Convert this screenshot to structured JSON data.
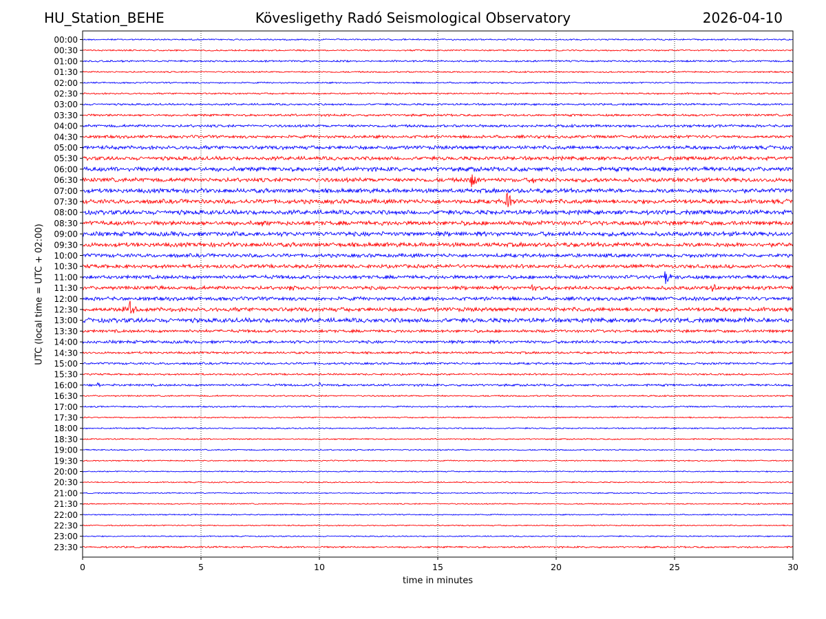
{
  "header": {
    "station": "HU_Station_BEHE",
    "observatory": "Kövesligethy Radó Seismological Observatory",
    "date": "2026-04-10"
  },
  "chart_data": {
    "type": "line",
    "title": "Kövesligethy Radó Seismological Observatory",
    "xlabel": "time in minutes",
    "ylabel": "UTC (local time = UTC + 02:00)",
    "xlim": [
      0,
      30
    ],
    "xticks": [
      0,
      5,
      10,
      15,
      20,
      25,
      30
    ],
    "vertical_grid": true,
    "trace_colors": [
      "#0000ff",
      "#ff0000"
    ],
    "row_labels": [
      "00:00",
      "00:30",
      "01:00",
      "01:30",
      "02:00",
      "02:30",
      "03:00",
      "03:30",
      "04:00",
      "04:30",
      "05:00",
      "05:30",
      "06:00",
      "06:30",
      "07:00",
      "07:30",
      "08:00",
      "08:30",
      "09:00",
      "09:30",
      "10:00",
      "10:30",
      "11:00",
      "11:30",
      "12:00",
      "12:30",
      "13:00",
      "13:30",
      "14:00",
      "14:30",
      "15:00",
      "15:30",
      "16:00",
      "16:30",
      "17:00",
      "17:30",
      "18:00",
      "18:30",
      "19:00",
      "19:30",
      "20:00",
      "20:30",
      "21:00",
      "21:30",
      "22:00",
      "22:30",
      "23:00",
      "23:30"
    ],
    "noise_level": [
      1.0,
      1.0,
      1.2,
      1.0,
      1.0,
      1.1,
      1.3,
      1.5,
      1.8,
      2.0,
      2.5,
      2.5,
      3.0,
      2.8,
      3.0,
      3.0,
      3.0,
      3.0,
      3.0,
      3.0,
      2.5,
      2.5,
      2.5,
      2.5,
      2.5,
      2.8,
      3.0,
      2.0,
      2.0,
      1.5,
      1.5,
      1.2,
      1.5,
      1.0,
      1.0,
      0.9,
      0.9,
      0.9,
      0.9,
      0.8,
      0.8,
      0.8,
      0.8,
      0.8,
      0.8,
      0.8,
      0.8,
      1.2
    ],
    "events": [
      {
        "row": 13,
        "minute": 16.4,
        "amplitude": 15
      },
      {
        "row": 13,
        "minute": 19.0,
        "amplitude": 5
      },
      {
        "row": 15,
        "minute": 17.9,
        "amplitude": 22
      },
      {
        "row": 17,
        "minute": 7.6,
        "amplitude": 5
      },
      {
        "row": 22,
        "minute": 24.6,
        "amplitude": 12
      },
      {
        "row": 23,
        "minute": 3.3,
        "amplitude": 6
      },
      {
        "row": 23,
        "minute": 8.7,
        "amplitude": 5
      },
      {
        "row": 23,
        "minute": 19.0,
        "amplitude": 6
      },
      {
        "row": 23,
        "minute": 26.6,
        "amplitude": 9
      },
      {
        "row": 25,
        "minute": 1.7,
        "amplitude": 7
      },
      {
        "row": 25,
        "minute": 2.0,
        "amplitude": 12
      },
      {
        "row": 26,
        "minute": 28.0,
        "amplitude": 5
      },
      {
        "row": 32,
        "minute": 0.6,
        "amplitude": 4
      },
      {
        "row": 32,
        "minute": 10.0,
        "amplitude": 4
      }
    ]
  }
}
